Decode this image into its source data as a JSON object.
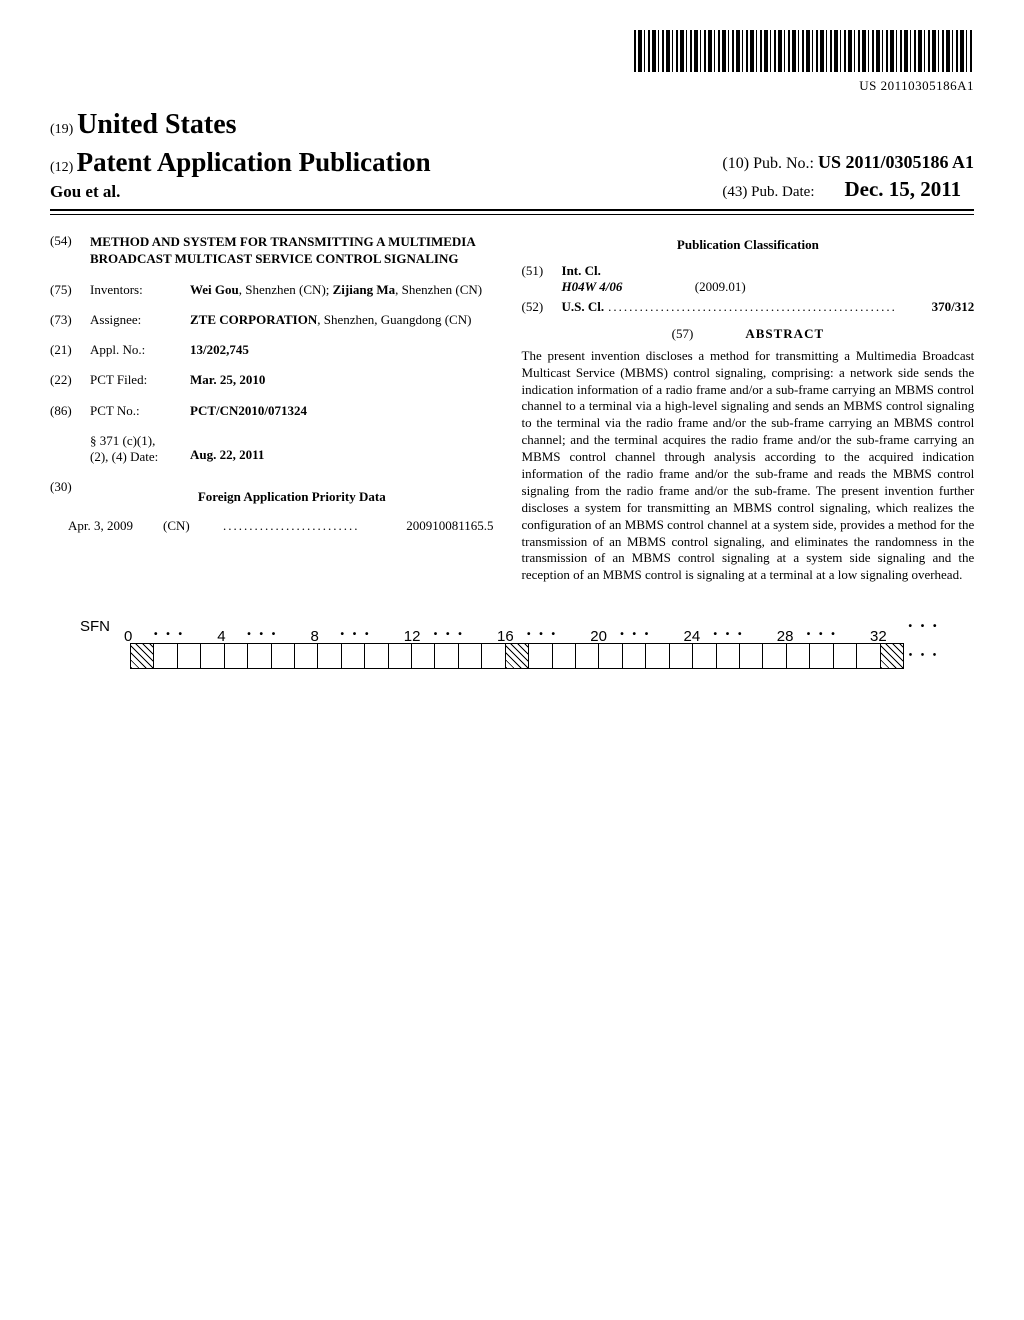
{
  "barcode_number": "US 20110305186A1",
  "header": {
    "code19": "(19)",
    "country": "United States",
    "code12": "(12)",
    "pub_type": "Patent Application Publication",
    "authors": "Gou et al.",
    "code10": "(10)",
    "pubno_label": "Pub. No.:",
    "pubno": "US 2011/0305186 A1",
    "code43": "(43)",
    "pubdate_label": "Pub. Date:",
    "pubdate": "Dec. 15, 2011"
  },
  "left": {
    "title": {
      "num": "(54)",
      "text": "METHOD AND SYSTEM FOR TRANSMITTING A MULTIMEDIA BROADCAST MULTICAST SERVICE CONTROL SIGNALING"
    },
    "inventors": {
      "num": "(75)",
      "label": "Inventors:",
      "val_html": "<b>Wei Gou</b>, Shenzhen (CN); <b>Zijiang Ma</b>, Shenzhen (CN)"
    },
    "assignee": {
      "num": "(73)",
      "label": "Assignee:",
      "val_html": "<b>ZTE CORPORATION</b>, Shenzhen, Guangdong (CN)"
    },
    "applno": {
      "num": "(21)",
      "label": "Appl. No.:",
      "val_html": "<b>13/202,745</b>"
    },
    "pctfiled": {
      "num": "(22)",
      "label": "PCT Filed:",
      "val_html": "<b>Mar. 25, 2010</b>"
    },
    "pctno": {
      "num": "(86)",
      "label": "PCT No.:",
      "val_html": "<b>PCT/CN2010/071324</b>"
    },
    "s371": {
      "num": "",
      "label_html": "§ 371 (c)(1),<br>(2), (4) Date:",
      "val_html": "<b>Aug. 22, 2011</b>"
    },
    "fapd": {
      "num": "(30)",
      "heading": "Foreign Application Priority Data"
    },
    "priority": {
      "date": "Apr. 3, 2009",
      "country": "(CN)",
      "dots": "..........................",
      "appno": "200910081165.5"
    }
  },
  "right": {
    "pubclass_heading": "Publication Classification",
    "intcl": {
      "num": "(51)",
      "label": "Int. Cl.",
      "code": "H04W 4/06",
      "year": "(2009.01)"
    },
    "uscl": {
      "num": "(52)",
      "label": "U.S. Cl.",
      "dots": ".......................................................",
      "cls": "370/312"
    },
    "abstract": {
      "num": "(57)",
      "label": "ABSTRACT",
      "body": "The present invention discloses a method for transmitting a Multimedia Broadcast Multicast Service (MBMS) control signaling, comprising: a network side sends the indication information of a radio frame and/or a sub-frame carrying an MBMS control channel to a terminal via a high-level signaling and sends an MBMS control signaling to the terminal via the radio frame and/or the sub-frame carrying an MBMS control channel; and the terminal acquires the radio frame and/or the sub-frame carrying an MBMS control channel through analysis according to the acquired indication information of the radio frame and/or the sub-frame and reads the MBMS control signaling from the radio frame and/or the sub-frame. The present invention further discloses a system for transmitting an MBMS control signaling, which realizes the configuration of an MBMS control channel at a system side, provides a method for the transmission of an MBMS control signaling, and eliminates the randomness in the transmission of an MBMS control signaling at a system side signaling and the reception of an MBMS control is signaling at a terminal at a low signaling overhead."
    }
  },
  "diagram": {
    "sfn_label": "SFN",
    "numbers": [
      "0",
      "4",
      "8",
      "12",
      "16",
      "20",
      "24",
      "28",
      "32"
    ],
    "dots": "• • •",
    "end_dots": "• • •",
    "total_cells": 33,
    "hatched_indices": [
      0,
      16,
      32
    ]
  }
}
